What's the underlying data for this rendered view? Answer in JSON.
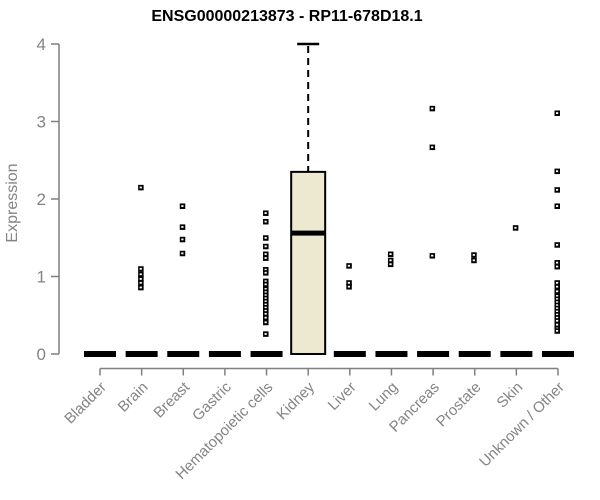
{
  "title": "ENSG00000213873 - RP11-678D18.1",
  "chart_data": {
    "type": "boxplot",
    "title": "ENSG00000213873 - RP11-678D18.1",
    "xlabel": "",
    "ylabel": "Expression",
    "ylim": [
      0,
      4
    ],
    "y_ticks": [
      0,
      1,
      2,
      3,
      4
    ],
    "grid": false,
    "legend": "none",
    "categories": [
      "Bladder",
      "Brain",
      "Breast",
      "Gastric",
      "Hematopoietic cells",
      "Kidney",
      "Liver",
      "Lung",
      "Pancreas",
      "Prostate",
      "Skin",
      "Unknown / Other"
    ],
    "boxes": [
      {
        "category": "Bladder",
        "q1": 0,
        "median": 0,
        "q3": 0,
        "whisker_low": 0,
        "whisker_high": 0
      },
      {
        "category": "Brain",
        "q1": 0,
        "median": 0,
        "q3": 0,
        "whisker_low": 0,
        "whisker_high": 0
      },
      {
        "category": "Breast",
        "q1": 0,
        "median": 0,
        "q3": 0,
        "whisker_low": 0,
        "whisker_high": 0
      },
      {
        "category": "Gastric",
        "q1": 0,
        "median": 0,
        "q3": 0,
        "whisker_low": 0,
        "whisker_high": 0
      },
      {
        "category": "Hematopoietic cells",
        "q1": 0,
        "median": 0,
        "q3": 0,
        "whisker_low": 0,
        "whisker_high": 0
      },
      {
        "category": "Kidney",
        "q1": 0,
        "median": 1.56,
        "q3": 2.35,
        "whisker_low": 0,
        "whisker_high": 4.0
      },
      {
        "category": "Liver",
        "q1": 0,
        "median": 0,
        "q3": 0,
        "whisker_low": 0,
        "whisker_high": 0
      },
      {
        "category": "Lung",
        "q1": 0,
        "median": 0,
        "q3": 0,
        "whisker_low": 0,
        "whisker_high": 0
      },
      {
        "category": "Pancreas",
        "q1": 0,
        "median": 0,
        "q3": 0,
        "whisker_low": 0,
        "whisker_high": 0
      },
      {
        "category": "Prostate",
        "q1": 0,
        "median": 0,
        "q3": 0,
        "whisker_low": 0,
        "whisker_high": 0
      },
      {
        "category": "Skin",
        "q1": 0,
        "median": 0,
        "q3": 0,
        "whisker_low": 0,
        "whisker_high": 0
      },
      {
        "category": "Unknown / Other",
        "q1": 0,
        "median": 0,
        "q3": 0,
        "whisker_low": 0,
        "whisker_high": 0
      }
    ],
    "outlier_points": {
      "Bladder": [],
      "Brain": [
        2.15,
        1.1,
        1.03,
        0.97,
        0.92,
        0.86
      ],
      "Breast": [
        1.91,
        1.64,
        1.48,
        1.3
      ],
      "Gastric": [],
      "Hematopoietic cells": [
        1.82,
        1.71,
        1.5,
        1.39,
        1.29,
        1.24,
        1.09,
        1.05,
        0.94,
        0.9,
        0.84,
        0.8,
        0.76,
        0.72,
        0.68,
        0.64,
        0.6,
        0.56,
        0.52,
        0.47,
        0.41,
        0.26
      ],
      "Kidney": [],
      "Liver": [
        1.14,
        0.92,
        0.87
      ],
      "Lung": [
        1.29,
        1.21,
        1.16
      ],
      "Pancreas": [
        3.17,
        2.67,
        1.27
      ],
      "Prostate": [
        1.28,
        1.21
      ],
      "Skin": [
        1.63
      ],
      "Unknown / Other": [
        3.11,
        2.36,
        2.12,
        1.91,
        1.41,
        1.18,
        1.13,
        0.92,
        0.87,
        0.81,
        0.75,
        0.71,
        0.67,
        0.63,
        0.59,
        0.55,
        0.51,
        0.47,
        0.43,
        0.38,
        0.33,
        0.3
      ]
    }
  },
  "colors": {
    "box_fill": "#ede8d0",
    "box_stroke": "#000000",
    "median": "#000000",
    "point": "#000000",
    "axis": "#7f7f7f",
    "tick_label": "#848484",
    "title": "#000000"
  }
}
